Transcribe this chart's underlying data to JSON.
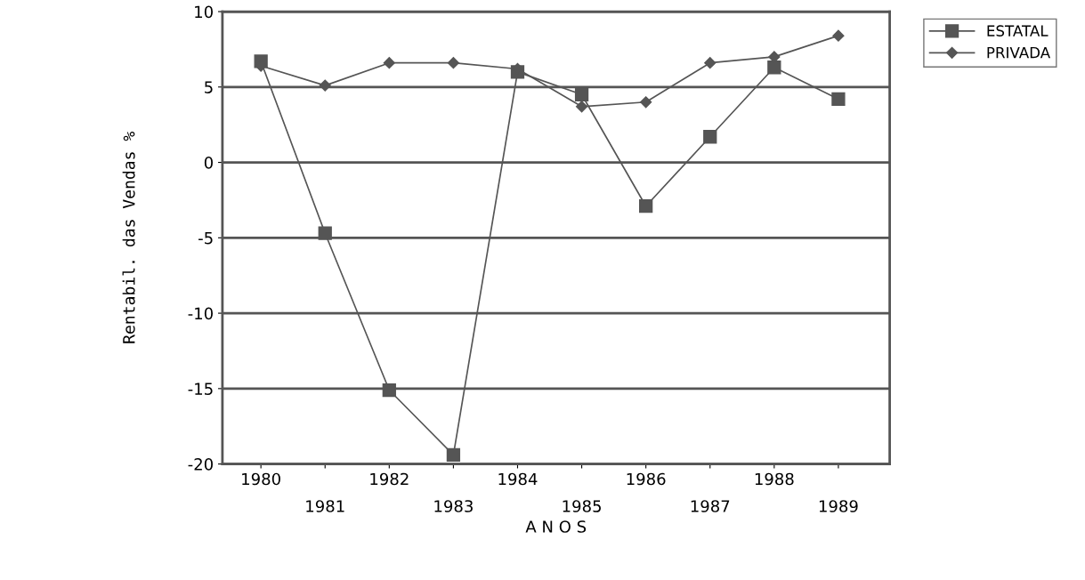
{
  "chart_data": {
    "type": "line",
    "ylabel": "Rentabil. das Vendas %",
    "xlabel": "A N O S",
    "categories": [
      "1980",
      "1981",
      "1982",
      "1983",
      "1984",
      "1985",
      "1986",
      "1987",
      "1988",
      "1989"
    ],
    "series": [
      {
        "name": "ESTATAL",
        "color": "#555555",
        "marker": "square",
        "values": [
          6.7,
          -4.7,
          -15.1,
          -19.4,
          6.0,
          4.5,
          -2.9,
          1.7,
          6.3,
          4.2
        ]
      },
      {
        "name": "PRIVADA",
        "color": "#555555",
        "marker": "diamond",
        "values": [
          6.4,
          5.1,
          6.6,
          6.6,
          6.2,
          3.7,
          4.0,
          6.6,
          7.0,
          8.4
        ]
      }
    ],
    "ylim": [
      -20,
      10
    ],
    "yticks": [
      -20,
      -15,
      -10,
      -5,
      0,
      5,
      10
    ],
    "grid": "y",
    "legend": "top right"
  }
}
